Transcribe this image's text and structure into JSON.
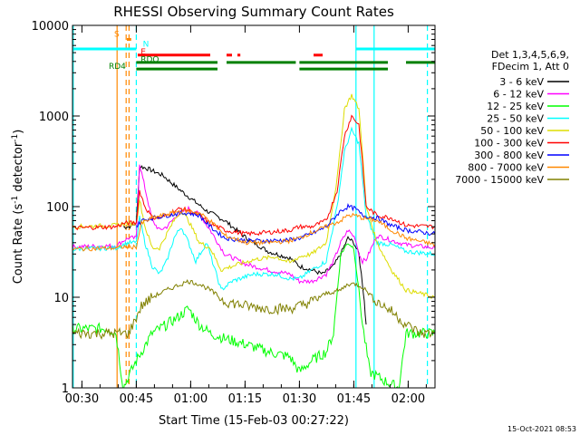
{
  "chart_data": {
    "type": "line",
    "title": "RHESSI Observing Summary Count Rates",
    "xlabel": "Start Time (15-Feb-03 00:27:22)",
    "ylabel_main": "Count Rate (s",
    "ylabel_sup": "-1",
    "ylabel_rest": " detector",
    "ylabel_end": ")",
    "y_scale": "log",
    "ylim": [
      1,
      10000
    ],
    "xlim_minutes": [
      0,
      100
    ],
    "x_ticks": [
      {
        "label": "00:30",
        "t": 2.6
      },
      {
        "label": "00:45",
        "t": 17.6
      },
      {
        "label": "01:00",
        "t": 32.6
      },
      {
        "label": "01:15",
        "t": 47.6
      },
      {
        "label": "01:30",
        "t": 62.6
      },
      {
        "label": "01:45",
        "t": 77.6
      },
      {
        "label": "02:00",
        "t": 92.6
      }
    ],
    "y_ticks": [
      {
        "label": "1",
        "v": 1
      },
      {
        "label": "10",
        "v": 10
      },
      {
        "label": "100",
        "v": 100
      },
      {
        "label": "1000",
        "v": 1000
      },
      {
        "label": "10000",
        "v": 10000
      }
    ],
    "grid": false,
    "legend_placement": "right",
    "legend_header": [
      "Det 1,3,4,5,6,9,",
      "FDecim 1, Att 0"
    ],
    "series": [
      {
        "name": "3 - 6 keV",
        "color": "#000000",
        "points": [
          [
            14,
            60
          ],
          [
            15.5,
            60
          ],
          [
            17.6,
            65
          ],
          [
            18.5,
            280
          ],
          [
            21,
            260
          ],
          [
            25,
            220
          ],
          [
            29,
            160
          ],
          [
            33,
            120
          ],
          [
            37,
            90
          ],
          [
            42,
            70
          ],
          [
            48,
            45
          ],
          [
            54,
            32
          ],
          [
            60,
            27
          ],
          [
            62.6,
            22
          ],
          [
            66,
            20
          ],
          [
            69,
            18
          ],
          [
            72,
            22
          ],
          [
            74,
            30
          ],
          [
            76,
            45
          ],
          [
            77.6,
            40
          ],
          [
            79,
            30
          ],
          [
            80,
            14
          ],
          [
            80.5,
            9
          ],
          [
            81,
            5
          ]
        ]
      },
      {
        "name": "6 - 12 keV",
        "color": "#ff00ff",
        "points": [
          [
            0,
            36
          ],
          [
            12,
            37
          ],
          [
            14,
            42
          ],
          [
            15.5,
            45
          ],
          [
            17.6,
            45
          ],
          [
            18.5,
            300
          ],
          [
            20,
            160
          ],
          [
            22,
            70
          ],
          [
            24,
            55
          ],
          [
            26,
            60
          ],
          [
            29,
            82
          ],
          [
            32,
            95
          ],
          [
            35,
            82
          ],
          [
            38,
            55
          ],
          [
            42,
            30
          ],
          [
            48,
            23
          ],
          [
            54,
            20
          ],
          [
            60,
            18
          ],
          [
            62.6,
            15
          ],
          [
            66,
            15
          ],
          [
            70,
            18
          ],
          [
            72,
            25
          ],
          [
            74,
            40
          ],
          [
            76,
            55
          ],
          [
            78,
            45
          ],
          [
            79,
            30
          ],
          [
            80,
            25
          ],
          [
            81,
            26
          ],
          [
            84,
            48
          ],
          [
            90,
            40
          ],
          [
            92,
            38
          ],
          [
            100,
            35
          ]
        ]
      },
      {
        "name": "12 - 25 keV",
        "color": "#00ff00",
        "points": [
          [
            0,
            4.5
          ],
          [
            10,
            4.5
          ],
          [
            12,
            4.0
          ],
          [
            14,
            1.0
          ],
          [
            17.6,
            2
          ],
          [
            22,
            4
          ],
          [
            26,
            5
          ],
          [
            29,
            6
          ],
          [
            32,
            7.5
          ],
          [
            35,
            5
          ],
          [
            38,
            4
          ],
          [
            42,
            3.5
          ],
          [
            48,
            3
          ],
          [
            54,
            2.5
          ],
          [
            60,
            2.2
          ],
          [
            62.6,
            1.5
          ],
          [
            66,
            2
          ],
          [
            70,
            2.5
          ],
          [
            72,
            4
          ],
          [
            74,
            30
          ],
          [
            76,
            40
          ],
          [
            77.6,
            35
          ],
          [
            79,
            12
          ],
          [
            80,
            5
          ],
          [
            82,
            1.5
          ],
          [
            86,
            1.2
          ],
          [
            90,
            1.0
          ],
          [
            92,
            4
          ],
          [
            100,
            4
          ]
        ]
      },
      {
        "name": "25 - 50 keV",
        "color": "#00ffff",
        "points": [
          [
            0,
            34
          ],
          [
            12,
            35
          ],
          [
            14,
            38
          ],
          [
            15.5,
            40
          ],
          [
            17.6,
            40
          ],
          [
            18.5,
            75
          ],
          [
            20,
            40
          ],
          [
            22,
            22
          ],
          [
            24,
            18
          ],
          [
            26,
            25
          ],
          [
            28,
            45
          ],
          [
            30,
            60
          ],
          [
            32,
            40
          ],
          [
            34,
            25
          ],
          [
            37,
            40
          ],
          [
            41,
            12
          ],
          [
            44,
            15
          ],
          [
            50,
            18
          ],
          [
            56,
            18
          ],
          [
            60,
            16
          ],
          [
            62.6,
            16
          ],
          [
            66,
            20
          ],
          [
            70,
            25
          ],
          [
            73,
            100
          ],
          [
            75,
            400
          ],
          [
            77,
            700
          ],
          [
            79,
            500
          ],
          [
            80,
            200
          ],
          [
            81,
            80
          ],
          [
            84,
            40
          ],
          [
            88,
            38
          ],
          [
            92,
            32
          ],
          [
            100,
            30
          ]
        ]
      },
      {
        "name": "50 - 100 keV",
        "color": "#dddd00",
        "points": [
          [
            0,
            60
          ],
          [
            12,
            62
          ],
          [
            14,
            65
          ],
          [
            15.5,
            65
          ],
          [
            17.6,
            65
          ],
          [
            18.5,
            120
          ],
          [
            20,
            60
          ],
          [
            22,
            35
          ],
          [
            24,
            35
          ],
          [
            26,
            50
          ],
          [
            28,
            70
          ],
          [
            30,
            90
          ],
          [
            32,
            70
          ],
          [
            35,
            40
          ],
          [
            38,
            35
          ],
          [
            41,
            20
          ],
          [
            44,
            22
          ],
          [
            50,
            26
          ],
          [
            56,
            28
          ],
          [
            60,
            24
          ],
          [
            62.6,
            28
          ],
          [
            66,
            30
          ],
          [
            70,
            40
          ],
          [
            73,
            200
          ],
          [
            75,
            1200
          ],
          [
            77,
            1700
          ],
          [
            79,
            1200
          ],
          [
            80,
            400
          ],
          [
            81,
            100
          ],
          [
            84,
            40
          ],
          [
            88,
            20
          ],
          [
            92,
            12
          ],
          [
            100,
            10
          ]
        ]
      },
      {
        "name": "100 - 300 keV",
        "color": "#ff0000",
        "points": [
          [
            0,
            58
          ],
          [
            12,
            60
          ],
          [
            14,
            65
          ],
          [
            15.5,
            66
          ],
          [
            17.6,
            66
          ],
          [
            18.5,
            150
          ],
          [
            20,
            100
          ],
          [
            22,
            75
          ],
          [
            24,
            75
          ],
          [
            26,
            80
          ],
          [
            28,
            90
          ],
          [
            30,
            95
          ],
          [
            32,
            90
          ],
          [
            35,
            80
          ],
          [
            38,
            65
          ],
          [
            42,
            55
          ],
          [
            48,
            50
          ],
          [
            54,
            52
          ],
          [
            60,
            55
          ],
          [
            62.6,
            60
          ],
          [
            66,
            60
          ],
          [
            70,
            70
          ],
          [
            73,
            150
          ],
          [
            75,
            600
          ],
          [
            77,
            1000
          ],
          [
            79,
            800
          ],
          [
            80,
            300
          ],
          [
            81,
            100
          ],
          [
            84,
            80
          ],
          [
            88,
            75
          ],
          [
            92,
            62
          ],
          [
            100,
            60
          ]
        ]
      },
      {
        "name": "300 - 800 keV",
        "color": "#0000ff",
        "points": [
          [
            17.6,
            60
          ],
          [
            19,
            70
          ],
          [
            22,
            75
          ],
          [
            26,
            80
          ],
          [
            30,
            85
          ],
          [
            32,
            85
          ],
          [
            35,
            80
          ],
          [
            38,
            60
          ],
          [
            42,
            45
          ],
          [
            48,
            42
          ],
          [
            54,
            42
          ],
          [
            60,
            43
          ],
          [
            62.6,
            45
          ],
          [
            66,
            50
          ],
          [
            70,
            60
          ],
          [
            74,
            90
          ],
          [
            76,
            100
          ],
          [
            78,
            95
          ],
          [
            80,
            80
          ],
          [
            84,
            75
          ],
          [
            88,
            62
          ],
          [
            92,
            55
          ],
          [
            100,
            50
          ]
        ]
      },
      {
        "name": "800 - 7000 keV",
        "color": "#ff8800",
        "points": [
          [
            0,
            34
          ],
          [
            12,
            35
          ],
          [
            14,
            36
          ],
          [
            15.5,
            36
          ],
          [
            17.6,
            36
          ],
          [
            19,
            65
          ],
          [
            22,
            75
          ],
          [
            26,
            82
          ],
          [
            30,
            90
          ],
          [
            32,
            90
          ],
          [
            35,
            85
          ],
          [
            38,
            70
          ],
          [
            42,
            48
          ],
          [
            48,
            40
          ],
          [
            54,
            40
          ],
          [
            60,
            42
          ],
          [
            62.6,
            45
          ],
          [
            66,
            52
          ],
          [
            70,
            60
          ],
          [
            74,
            70
          ],
          [
            76,
            80
          ],
          [
            78,
            80
          ],
          [
            80,
            75
          ],
          [
            84,
            70
          ],
          [
            88,
            55
          ],
          [
            92,
            45
          ],
          [
            100,
            38
          ]
        ]
      },
      {
        "name": "7000 - 15000 keV",
        "color": "#808000",
        "points": [
          [
            0,
            4
          ],
          [
            12,
            4
          ],
          [
            14,
            4
          ],
          [
            15.5,
            4
          ],
          [
            17.6,
            6
          ],
          [
            19,
            8
          ],
          [
            22,
            10
          ],
          [
            26,
            12
          ],
          [
            30,
            14
          ],
          [
            32,
            15
          ],
          [
            35,
            14
          ],
          [
            38,
            12
          ],
          [
            42,
            9
          ],
          [
            48,
            8
          ],
          [
            54,
            7.5
          ],
          [
            60,
            7.5
          ],
          [
            62.6,
            8
          ],
          [
            66,
            9
          ],
          [
            70,
            11
          ],
          [
            74,
            12
          ],
          [
            76,
            14
          ],
          [
            78,
            14
          ],
          [
            80,
            13
          ],
          [
            84,
            9
          ],
          [
            88,
            7
          ],
          [
            92,
            5
          ],
          [
            96,
            4
          ],
          [
            100,
            4
          ]
        ]
      }
    ],
    "flags": [
      {
        "name": "N",
        "color": "#00ffff",
        "v": 5500,
        "segments": [
          [
            0,
            17.6
          ],
          [
            78.2,
            100
          ]
        ]
      },
      {
        "name": "S",
        "color": "#ff8800",
        "v": 7000,
        "segments": [
          [
            15.0,
            16.2
          ]
        ]
      },
      {
        "name": "E",
        "color": "#ff0000",
        "v": 4700,
        "segments": [
          [
            18.0,
            38.0
          ],
          [
            42.5,
            44.0
          ],
          [
            45.5,
            46.3
          ],
          [
            66.5,
            69.0
          ]
        ]
      },
      {
        "name": "RDO",
        "color": "#008000",
        "v": 3900,
        "segments": [
          [
            17.6,
            40.0
          ],
          [
            42.5,
            61.6
          ],
          [
            62.6,
            87.0
          ],
          [
            92.0,
            100
          ]
        ]
      },
      {
        "name": "RD4",
        "color": "#008000",
        "v": 3300,
        "segments": [
          [
            17.6,
            40.0
          ],
          [
            62.6,
            87.0
          ]
        ]
      }
    ],
    "flag_labels": [
      {
        "text": "S",
        "t": 11.5,
        "v": 7500,
        "color": "#ff8800"
      },
      {
        "text": "N",
        "t": 19.4,
        "v": 5800,
        "color": "#00ffff"
      },
      {
        "text": "E",
        "t": 18.8,
        "v": 4800,
        "color": "#ff0000"
      },
      {
        "text": "RDO",
        "t": 18.8,
        "v": 3950,
        "color": "#008000"
      },
      {
        "text": "RD4",
        "t": 10.0,
        "v": 3300,
        "color": "#008000"
      }
    ],
    "vlines": [
      {
        "t": 0.2,
        "color": "#00ffff",
        "dash": false
      },
      {
        "t": 12.3,
        "color": "#ff8800",
        "dash": false
      },
      {
        "t": 14.8,
        "color": "#ff8800",
        "dash": true
      },
      {
        "t": 15.6,
        "color": "#ff8800",
        "dash": true
      },
      {
        "t": 17.6,
        "color": "#00ffff",
        "dash": true
      },
      {
        "t": 78.2,
        "color": "#00ffff",
        "dash": false
      },
      {
        "t": 83.2,
        "color": "#00ffff",
        "dash": false
      },
      {
        "t": 97.9,
        "color": "#00ffff",
        "dash": true
      }
    ],
    "footer_date": "15-Oct-2021 08:53"
  }
}
